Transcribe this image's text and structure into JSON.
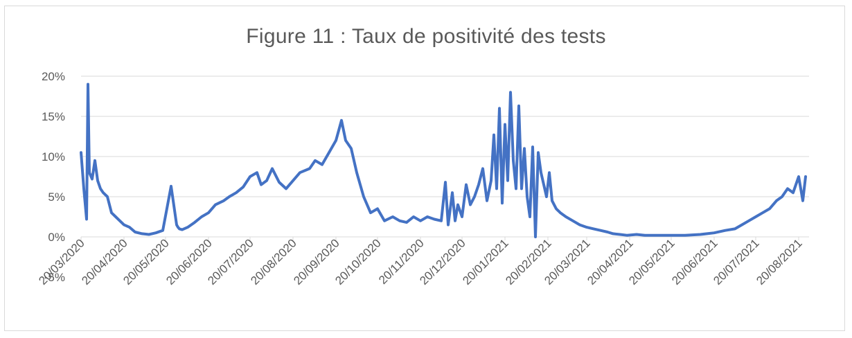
{
  "chart_data": {
    "type": "line",
    "title": "Figure 11 : Taux de positivité des tests",
    "xlabel": "",
    "ylabel": "",
    "ylim": [
      -5,
      20
    ],
    "y_ticks": [
      "-5%",
      "0%",
      "5%",
      "10%",
      "15%",
      "20%"
    ],
    "y_tick_values": [
      -5,
      0,
      5,
      10,
      15,
      20
    ],
    "x_ticks": [
      "20/03/2020",
      "20/04/2020",
      "20/05/2020",
      "20/06/2020",
      "20/07/2020",
      "20/08/2020",
      "20/09/2020",
      "20/10/2020",
      "20/11/2020",
      "20/12/2020",
      "20/01/2021",
      "20/02/2021",
      "20/03/2021",
      "20/04/2021",
      "20/05/2021",
      "20/06/2021",
      "20/07/2021",
      "20/08/2021"
    ],
    "grid": true,
    "legend": "none",
    "series_color": "#4472c4",
    "series": [
      {
        "x": [
          "2020-03-20",
          "2020-03-22",
          "2020-03-24",
          "2020-03-25",
          "2020-03-26",
          "2020-03-28",
          "2020-03-30",
          "2020-04-01",
          "2020-04-03",
          "2020-04-05",
          "2020-04-08",
          "2020-04-11",
          "2020-04-14",
          "2020-04-17",
          "2020-04-20",
          "2020-04-24",
          "2020-04-28",
          "2020-05-03",
          "2020-05-08",
          "2020-05-13",
          "2020-05-18",
          "2020-05-24",
          "2020-05-28",
          "2020-05-29",
          "2020-05-30",
          "2020-06-01",
          "2020-06-05",
          "2020-06-10",
          "2020-06-15",
          "2020-06-20",
          "2020-06-25",
          "2020-07-01",
          "2020-07-05",
          "2020-07-10",
          "2020-07-15",
          "2020-07-20",
          "2020-07-25",
          "2020-07-28",
          "2020-08-01",
          "2020-08-05",
          "2020-08-10",
          "2020-08-15",
          "2020-08-20",
          "2020-08-25",
          "2020-09-01",
          "2020-09-05",
          "2020-09-10",
          "2020-09-15",
          "2020-09-20",
          "2020-09-24",
          "2020-09-27",
          "2020-10-01",
          "2020-10-05",
          "2020-10-10",
          "2020-10-15",
          "2020-10-20",
          "2020-10-25",
          "2020-10-31",
          "2020-11-05",
          "2020-11-10",
          "2020-11-15",
          "2020-11-20",
          "2020-11-25",
          "2020-11-30",
          "2020-12-05",
          "2020-12-08",
          "2020-12-10",
          "2020-12-13",
          "2020-12-15",
          "2020-12-17",
          "2020-12-20",
          "2020-12-23",
          "2020-12-26",
          "2020-12-29",
          "2021-01-01",
          "2021-01-04",
          "2021-01-07",
          "2021-01-10",
          "2021-01-12",
          "2021-01-14",
          "2021-01-16",
          "2021-01-18",
          "2021-01-20",
          "2021-01-22",
          "2021-01-24",
          "2021-01-26",
          "2021-01-28",
          "2021-01-30",
          "2021-02-01",
          "2021-02-03",
          "2021-02-05",
          "2021-02-07",
          "2021-02-09",
          "2021-02-11",
          "2021-02-13",
          "2021-02-15",
          "2021-02-17",
          "2021-02-19",
          "2021-02-21",
          "2021-02-23",
          "2021-02-26",
          "2021-03-01",
          "2021-03-05",
          "2021-03-10",
          "2021-03-15",
          "2021-03-20",
          "2021-03-25",
          "2021-03-30",
          "2021-04-04",
          "2021-04-08",
          "2021-04-13",
          "2021-04-18",
          "2021-04-25",
          "2021-05-01",
          "2021-05-10",
          "2021-05-20",
          "2021-05-30",
          "2021-06-10",
          "2021-06-20",
          "2021-06-28",
          "2021-07-05",
          "2021-07-10",
          "2021-07-15",
          "2021-07-20",
          "2021-07-25",
          "2021-07-30",
          "2021-08-04",
          "2021-08-08",
          "2021-08-12",
          "2021-08-16",
          "2021-08-20",
          "2021-08-23",
          "2021-08-25"
        ],
        "y": [
          10.5,
          6.0,
          2.2,
          19.0,
          8.0,
          7.2,
          9.5,
          7.0,
          6.0,
          5.5,
          5.0,
          3.0,
          2.5,
          2.0,
          1.5,
          1.2,
          0.6,
          0.4,
          0.3,
          0.5,
          0.8,
          6.3,
          1.5,
          1.2,
          1.0,
          0.9,
          1.2,
          1.8,
          2.5,
          3.0,
          4.0,
          4.5,
          5.0,
          5.5,
          6.2,
          7.5,
          8.0,
          6.5,
          7.0,
          8.5,
          6.8,
          6.0,
          7.0,
          8.0,
          8.5,
          9.5,
          9.0,
          10.5,
          12.0,
          14.5,
          12.0,
          11.0,
          8.0,
          5.0,
          3.0,
          3.5,
          2.0,
          2.5,
          2.0,
          1.8,
          2.5,
          2.0,
          2.5,
          2.2,
          2.0,
          6.8,
          1.5,
          5.5,
          2.0,
          4.0,
          2.5,
          6.5,
          4.0,
          5.0,
          6.5,
          8.5,
          4.5,
          7.0,
          12.7,
          6.0,
          16.0,
          4.2,
          14.0,
          7.0,
          18.0,
          9.5,
          6.0,
          16.3,
          6.0,
          11.0,
          5.0,
          2.5,
          11.2,
          0.0,
          10.5,
          8.0,
          6.5,
          5.0,
          8.0,
          4.5,
          3.5,
          3.0,
          2.5,
          2.0,
          1.5,
          1.2,
          1.0,
          0.8,
          0.6,
          0.4,
          0.3,
          0.2,
          0.3,
          0.2,
          0.2,
          0.2,
          0.2,
          0.3,
          0.5,
          0.8,
          1.0,
          1.5,
          2.0,
          2.5,
          3.0,
          3.5,
          4.5,
          5.0,
          6.0,
          5.5,
          7.5,
          4.5,
          7.5
        ]
      }
    ]
  }
}
